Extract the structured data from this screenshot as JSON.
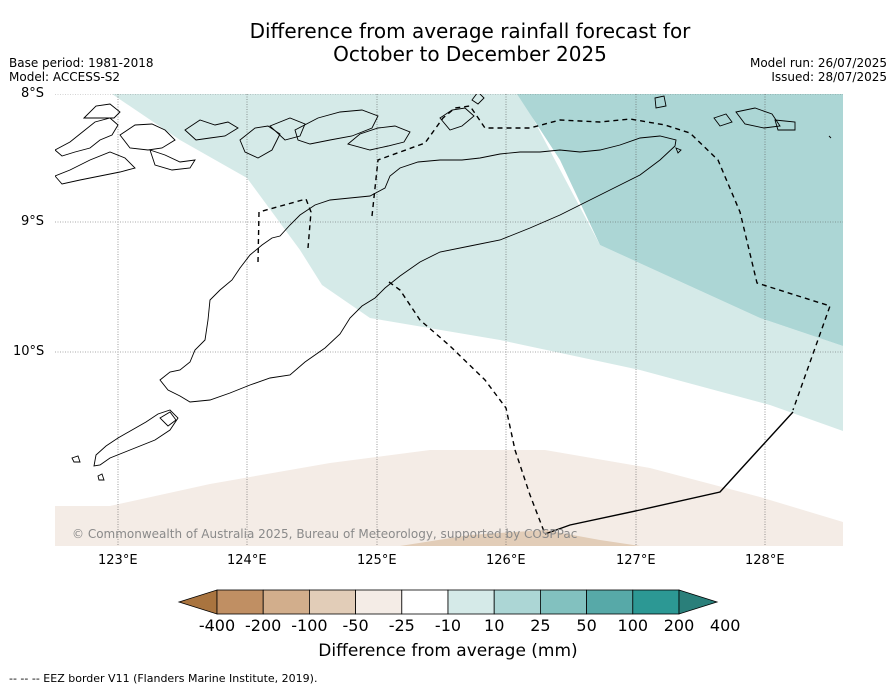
{
  "title_line1": "Difference from average rainfall forecast for",
  "title_line2": "October to December 2025",
  "meta": {
    "base_period": "Base period: 1981-2018",
    "model": "Model: ACCESS-S2",
    "model_run": "Model run: 26/07/2025",
    "issued": "Issued: 28/07/2025"
  },
  "axes": {
    "lat_labels": [
      "8°S",
      "9°S",
      "10°S"
    ],
    "lon_labels": [
      "123°E",
      "124°E",
      "125°E",
      "126°E",
      "127°E",
      "128°E"
    ]
  },
  "copyright": "© Commonwealth of Australia 2025, Bureau of Meteorology, supported by COSPPac",
  "colorbar": {
    "labels": [
      "-400",
      "-200",
      "-100",
      "-50",
      "-25",
      "-10",
      "10",
      "25",
      "50",
      "100",
      "200",
      "400"
    ],
    "colors": [
      "#a9743f",
      "#c08f63",
      "#d2ae8c",
      "#e2cdb8",
      "#f4ece6",
      "#ffffff",
      "#d5eae8",
      "#acd6d5",
      "#82c1bf",
      "#57a9a8",
      "#2c9894",
      "#2a7f7a"
    ],
    "title": "Difference from average (mm)"
  },
  "legend_footer": "--  --  -- EEZ border V11 (Flanders Marine Institute, 2019)."
}
